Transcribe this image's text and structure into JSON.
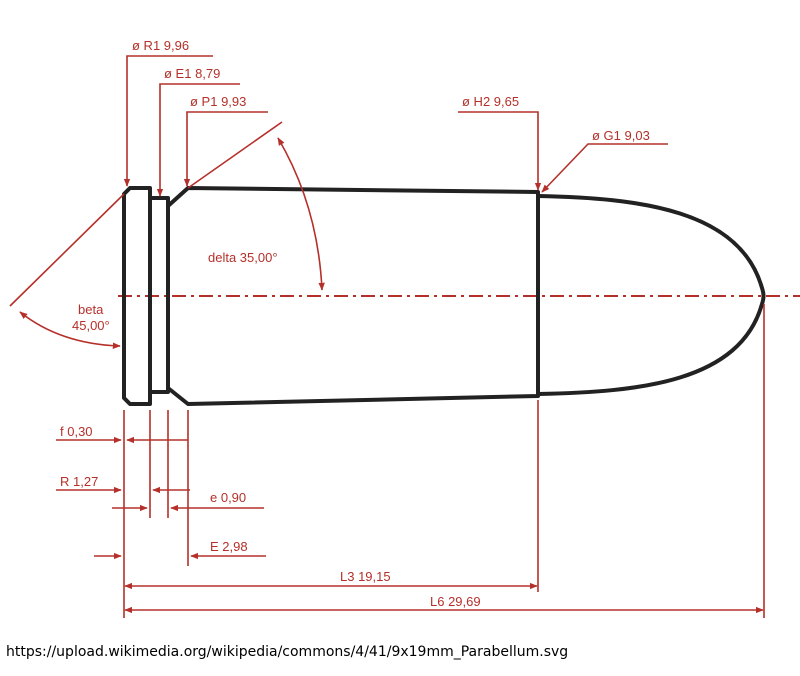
{
  "labels": {
    "R1": "ø R1  9,96",
    "E1": "ø E1  8,79",
    "P1": "ø P1  9,93",
    "H2": "ø H2  9,65",
    "G1": "ø G1 9,03",
    "delta": "delta  35,00°",
    "beta_name": "beta",
    "beta_value": "45,00°",
    "f": "f  0,30",
    "R": "R  1,27",
    "e": "e  0,90",
    "E": "E  2,98",
    "L3": "L3  19,15",
    "L6": "L6  29,69"
  },
  "colors": {
    "dimension": "#b5302a",
    "outline": "#222222"
  },
  "source_url": "https://upload.wikimedia.org/wikipedia/commons/4/41/9x19mm_Parabellum.svg"
}
